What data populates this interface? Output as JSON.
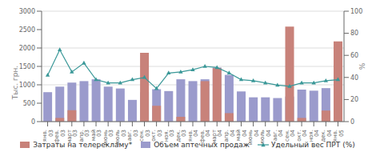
{
  "chart_data": {
    "type": "bar",
    "categories": [
      "янв.\n03",
      "фев.\n03",
      "март\n03",
      "апр.\n03",
      "май\n03",
      "июнь\n03",
      "июль\n03",
      "авг.\n03",
      "сен.\n03",
      "окт.\n03",
      "ноя.\n03",
      "дек.\n03",
      "янв.\n04",
      "фев.\n04",
      "март\n04",
      "апр.\n04",
      "май\n04",
      "июнь\n04",
      "июль\n04",
      "авг.\n04",
      "сен.\n04",
      "окт.\n04",
      "ноя.\n04",
      "дек.\n04",
      "янв.\n05"
    ],
    "series": [
      {
        "name": "Затраты на телерекламу*",
        "type": "bar",
        "color": "#c8827a",
        "values": [
          0,
          100,
          310,
          0,
          0,
          0,
          0,
          0,
          1870,
          430,
          0,
          130,
          0,
          1100,
          1450,
          230,
          0,
          0,
          0,
          0,
          2580,
          100,
          0,
          300,
          2180
        ]
      },
      {
        "name": "Объем аптечных продаж",
        "type": "bar",
        "color": "#9b9bcc",
        "values": [
          800,
          950,
          1060,
          1100,
          1150,
          950,
          900,
          590,
          800,
          880,
          830,
          1150,
          1100,
          1150,
          1470,
          1270,
          820,
          660,
          660,
          640,
          680,
          870,
          840,
          910,
          950
        ]
      },
      {
        "name": "Удельный вес ПРТ (%)",
        "type": "line",
        "color": "#3a9898",
        "marker": "triangle",
        "axis": "y2",
        "values": [
          42,
          65,
          45,
          53,
          38,
          35,
          35,
          38,
          40,
          30,
          44,
          45,
          47,
          50,
          49,
          44,
          38,
          37,
          35,
          33,
          32,
          35,
          35,
          37,
          38
        ]
      }
    ],
    "ylabel": "Тыс. грн.",
    "y2label": "%",
    "ylim": [
      0,
      3000
    ],
    "yticks": [
      0,
      500,
      1000,
      1500,
      2000,
      2500,
      3000
    ],
    "y2lim": [
      0,
      100
    ],
    "y2ticks": [
      0,
      20,
      40,
      60,
      80,
      100
    ],
    "grid": true,
    "legend": "bottom",
    "stacked": false
  }
}
